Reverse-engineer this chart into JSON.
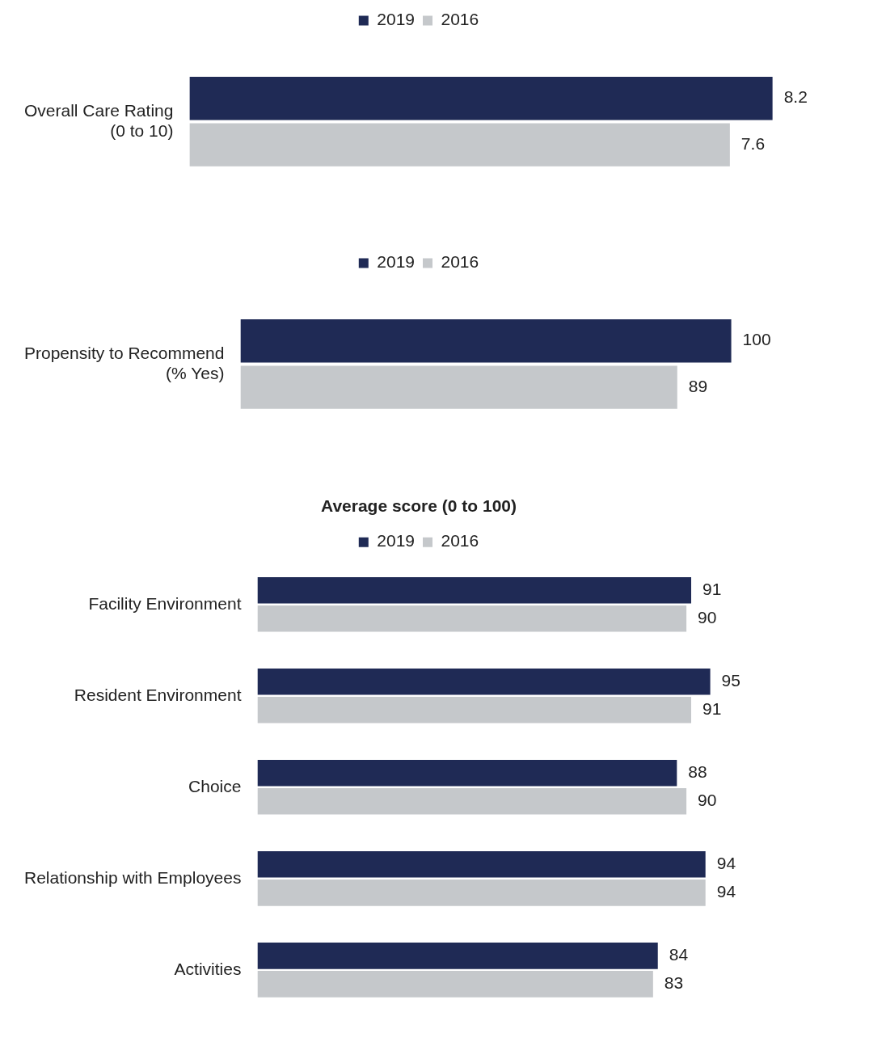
{
  "chart_data": [
    {
      "type": "bar",
      "orientation": "horizontal",
      "categories": [
        "Overall Care Rating\n(0 to 10)"
      ],
      "series": [
        {
          "name": "2019",
          "color": "#1f2a55",
          "values": [
            8.2
          ]
        },
        {
          "name": "2016",
          "color": "#c5c8cb",
          "values": [
            7.6
          ]
        }
      ],
      "data_labels": true,
      "legend": "top",
      "grid": false,
      "tick_labels": "y"
    },
    {
      "type": "bar",
      "orientation": "horizontal",
      "categories": [
        "Propensity to Recommend\n(% Yes)"
      ],
      "series": [
        {
          "name": "2019",
          "color": "#1f2a55",
          "values": [
            100
          ]
        },
        {
          "name": "2016",
          "color": "#c5c8cb",
          "values": [
            89
          ]
        }
      ],
      "data_labels": true,
      "legend": "top",
      "grid": false,
      "tick_labels": "y"
    },
    {
      "type": "bar",
      "orientation": "horizontal",
      "title": "Average score (0 to 100)",
      "categories": [
        "Facility Environment",
        "Resident Environment",
        "Choice",
        "Relationship with Employees",
        "Activities"
      ],
      "series": [
        {
          "name": "2019",
          "color": "#1f2a55",
          "values": [
            91,
            95,
            88,
            94,
            84
          ]
        },
        {
          "name": "2016",
          "color": "#c5c8cb",
          "values": [
            90,
            91,
            90,
            94,
            83
          ]
        }
      ],
      "data_labels": true,
      "legend": "top",
      "grid": false,
      "tick_labels": "y"
    }
  ]
}
